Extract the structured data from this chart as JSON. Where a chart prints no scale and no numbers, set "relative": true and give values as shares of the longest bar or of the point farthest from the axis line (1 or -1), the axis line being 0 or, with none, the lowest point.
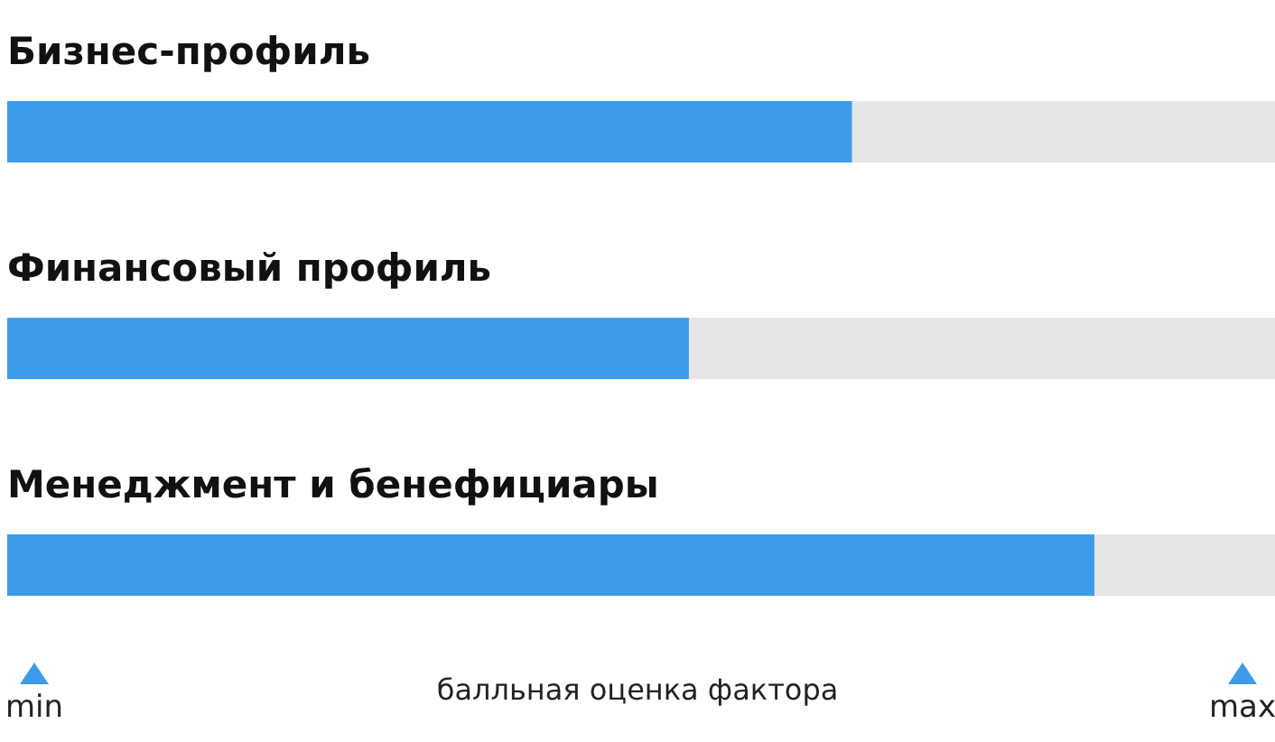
{
  "chart_data": {
    "type": "bar",
    "orientation": "horizontal",
    "relative": true,
    "categories": [
      "Бизнес-профиль",
      "Финансовый профиль",
      "Менеджмент и бенефициары"
    ],
    "values": [
      0.777,
      0.627,
      1
    ],
    "color": "#3d9be9",
    "xlabel": "балльная оценка фактора",
    "annotations": [
      "min",
      "max"
    ]
  }
}
